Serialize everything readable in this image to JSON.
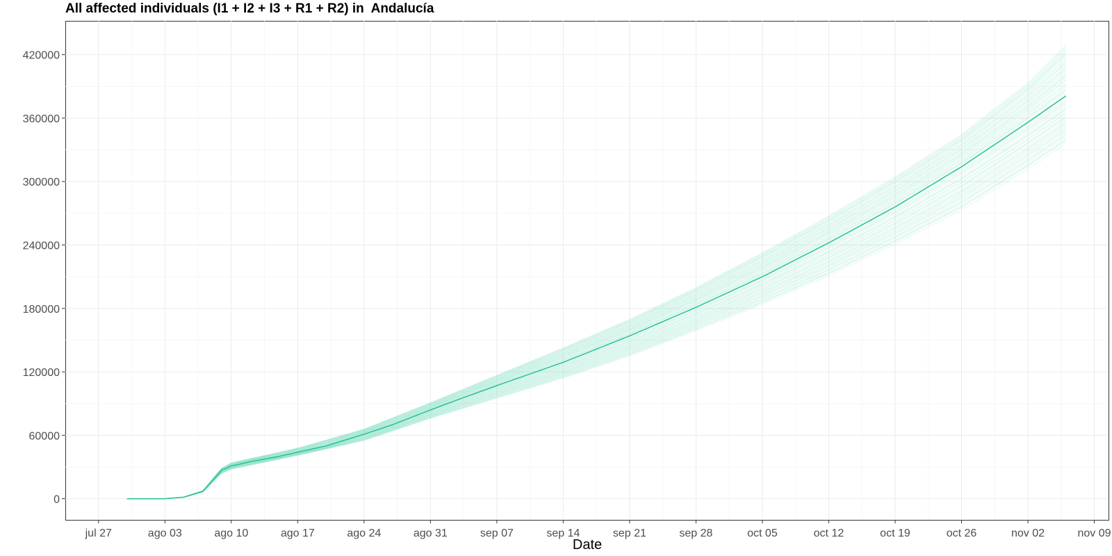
{
  "chart_data": {
    "type": "line",
    "title": "All affected individuals (I1 + I2 + I3 + R1 + R2) in  Andalucía",
    "xlabel": "Date",
    "ylabel": "",
    "x_tick_labels": [
      "jul 27",
      "ago 03",
      "ago 10",
      "ago 17",
      "ago 24",
      "ago 31",
      "sep 07",
      "sep 14",
      "sep 21",
      "sep 28",
      "oct 05",
      "oct 12",
      "oct 19",
      "oct 26",
      "nov 02",
      "nov 09"
    ],
    "y_tick_labels": [
      "0",
      "60000",
      "120000",
      "180000",
      "240000",
      "300000",
      "360000",
      "420000"
    ],
    "x_range_days_from_jul27": [
      -3.5,
      106.5
    ],
    "ylim": [
      -20000,
      452000
    ],
    "grid": true,
    "series_color": "#1fbf93",
    "ensemble_band_color": "#8fe3c8",
    "ensemble_members": 60,
    "start_date_label": "jul 30",
    "end_date_label": "nov 06",
    "series": [
      {
        "role": "median",
        "points": [
          [
            "jul 30",
            0
          ],
          [
            "ago 03",
            0
          ],
          [
            "ago 05",
            1500
          ],
          [
            "ago 07",
            7000
          ],
          [
            "ago 09",
            27000
          ],
          [
            "ago 10",
            31000
          ],
          [
            "ago 12",
            35000
          ],
          [
            "ago 15",
            40000
          ],
          [
            "ago 17",
            44000
          ],
          [
            "ago 20",
            50000
          ],
          [
            "ago 24",
            61000
          ],
          [
            "ago 27",
            70000
          ],
          [
            "ago 31",
            84000
          ],
          [
            "sep 03",
            94000
          ],
          [
            "sep 07",
            107000
          ],
          [
            "sep 14",
            129000
          ],
          [
            "sep 21",
            154000
          ],
          [
            "sep 28",
            181000
          ],
          [
            "oct 05",
            210000
          ],
          [
            "oct 12",
            242000
          ],
          [
            "oct 19",
            276000
          ],
          [
            "oct 26",
            314000
          ],
          [
            "nov 02",
            356000
          ],
          [
            "nov 06",
            381000
          ]
        ]
      },
      {
        "role": "ensemble-lower",
        "points": [
          [
            "ago 09",
            24000
          ],
          [
            "ago 10",
            28000
          ],
          [
            "ago 17",
            41000
          ],
          [
            "ago 24",
            55000
          ],
          [
            "ago 31",
            76000
          ],
          [
            "sep 07",
            95000
          ],
          [
            "sep 14",
            114000
          ],
          [
            "sep 21",
            135000
          ],
          [
            "sep 28",
            159000
          ],
          [
            "oct 05",
            184000
          ],
          [
            "oct 12",
            211000
          ],
          [
            "oct 19",
            241000
          ],
          [
            "oct 26",
            273000
          ],
          [
            "nov 02",
            312000
          ],
          [
            "nov 06",
            336000
          ]
        ]
      },
      {
        "role": "ensemble-upper",
        "points": [
          [
            "ago 09",
            29000
          ],
          [
            "ago 10",
            34000
          ],
          [
            "ago 17",
            48000
          ],
          [
            "ago 24",
            66000
          ],
          [
            "ago 31",
            91000
          ],
          [
            "sep 07",
            117000
          ],
          [
            "sep 14",
            143000
          ],
          [
            "sep 21",
            170000
          ],
          [
            "sep 28",
            200000
          ],
          [
            "oct 05",
            233000
          ],
          [
            "oct 12",
            268000
          ],
          [
            "oct 19",
            305000
          ],
          [
            "oct 26",
            345000
          ],
          [
            "nov 02",
            394000
          ],
          [
            "nov 06",
            430000
          ]
        ]
      }
    ]
  }
}
